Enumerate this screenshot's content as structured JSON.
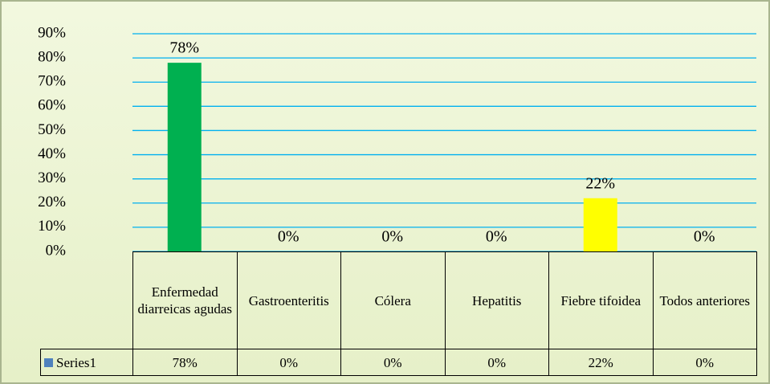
{
  "chart_data": {
    "type": "bar",
    "categories": [
      "Enfermedad diarreicas agudas",
      "Gastroenteritis",
      "Cólera",
      "Hepatitis",
      "Fiebre tifoidea",
      "Todos anteriores"
    ],
    "series": [
      {
        "name": "Series1",
        "color": "#4f81bd",
        "point_colors": [
          "#00b050",
          "#00b050",
          "#00b050",
          "#00b050",
          "#ffff00",
          "#00b050"
        ],
        "values": [
          78,
          0,
          0,
          0,
          22,
          0
        ],
        "value_labels": [
          "78%",
          "0%",
          "0%",
          "0%",
          "22%",
          "0%"
        ]
      }
    ],
    "ylim": [
      0,
      90
    ],
    "yticks": [
      {
        "value": 0,
        "label": "0%"
      },
      {
        "value": 10,
        "label": "10%"
      },
      {
        "value": 20,
        "label": "20%"
      },
      {
        "value": 30,
        "label": "30%"
      },
      {
        "value": 40,
        "label": "40%"
      },
      {
        "value": 50,
        "label": "50%"
      },
      {
        "value": 60,
        "label": "60%"
      },
      {
        "value": 70,
        "label": "70%"
      },
      {
        "value": 80,
        "label": "80%"
      },
      {
        "value": 90,
        "label": "90%"
      }
    ],
    "grid": true,
    "grid_color": "#00b0f0",
    "data_table": true
  }
}
